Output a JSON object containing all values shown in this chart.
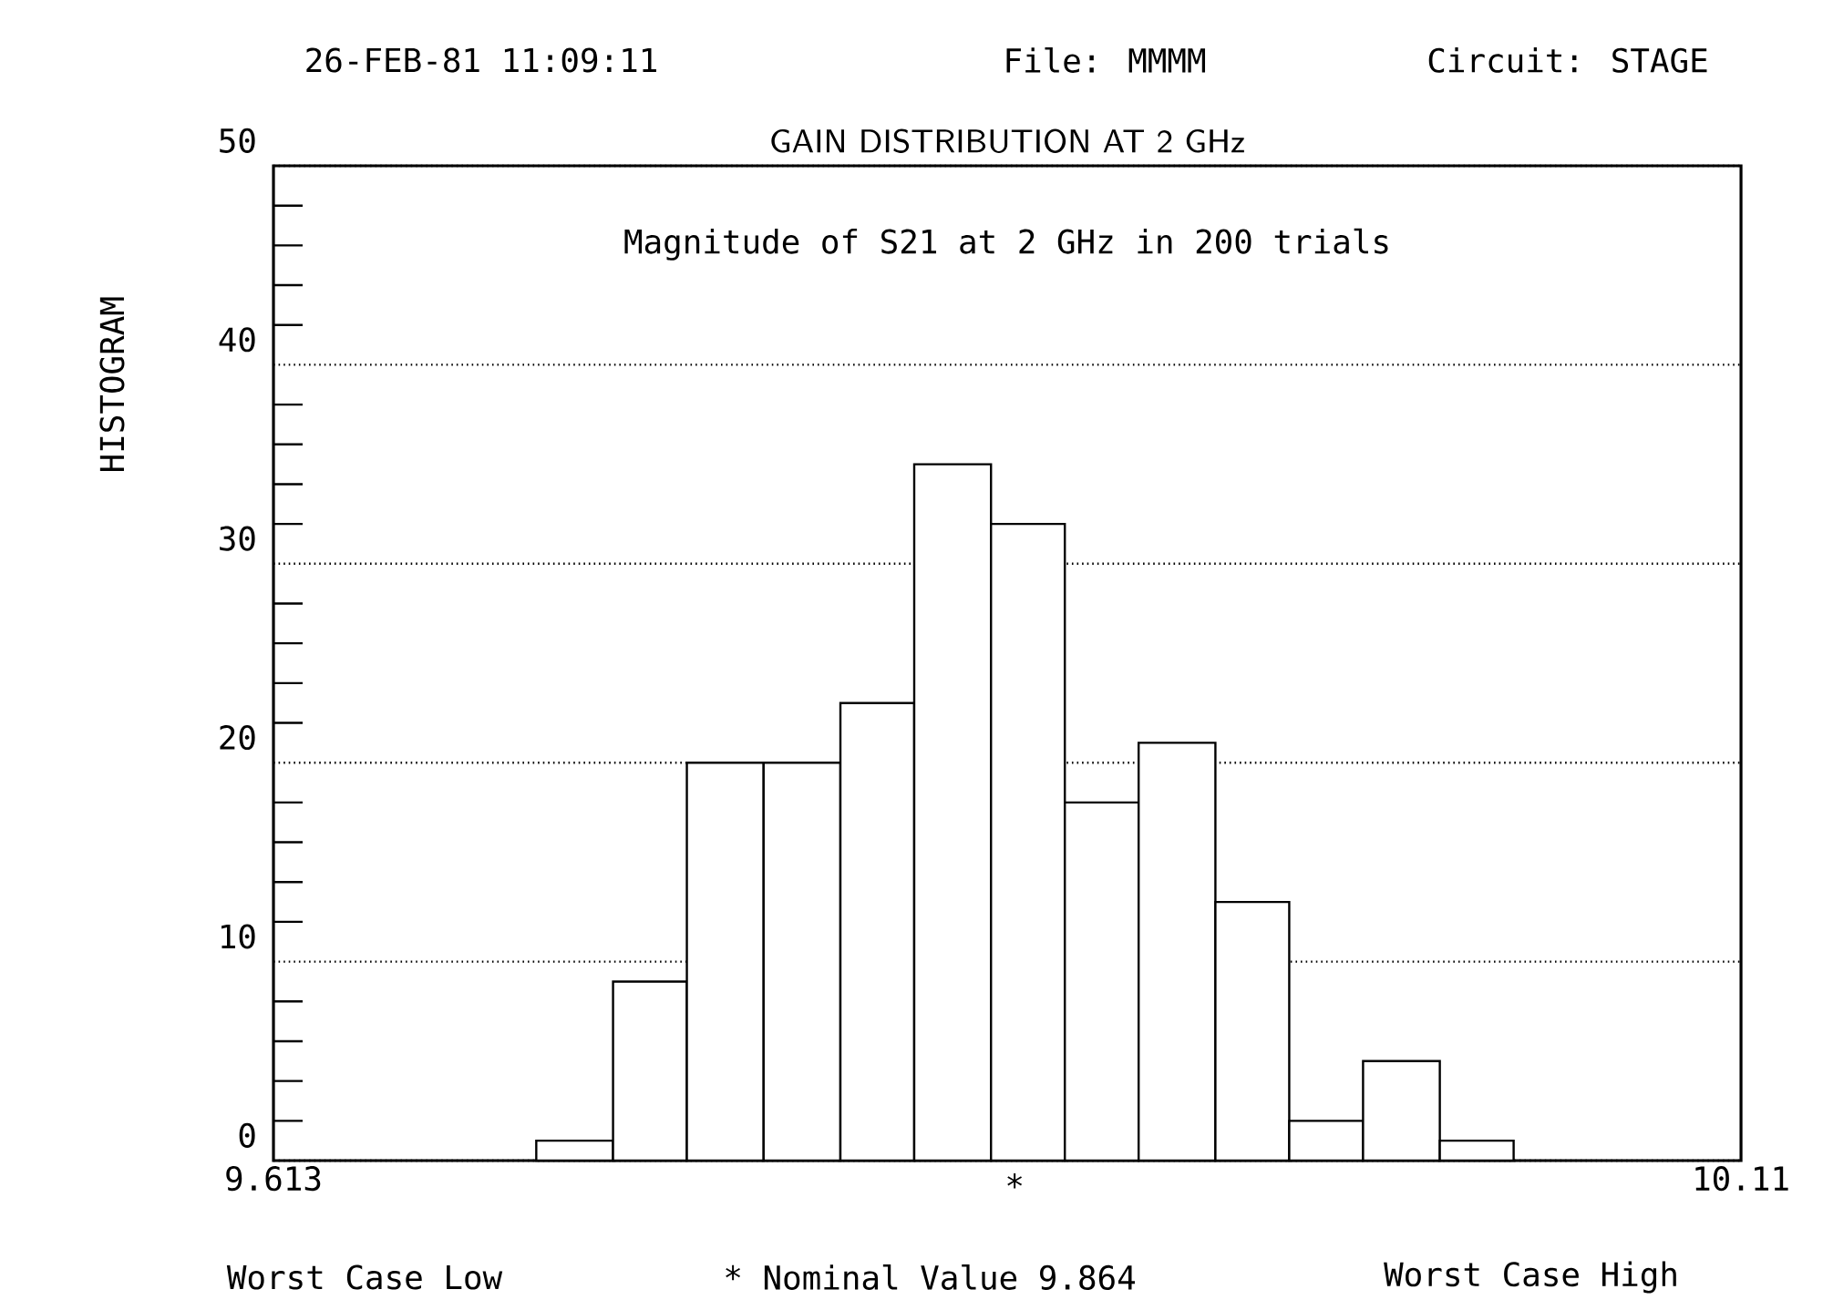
{
  "chart_data": {
    "type": "histogram",
    "title": "GAIN DISTRIBUTION AT 2 GHz",
    "ylabel": "HISTOGRAM",
    "bins": [
      9.702,
      9.728,
      9.753,
      9.779,
      9.805,
      9.83,
      9.856,
      9.881,
      9.906,
      9.932,
      9.957,
      9.982,
      10.008,
      10.033
    ],
    "values": [
      1,
      9,
      20,
      20,
      23,
      35,
      32,
      18,
      21,
      13,
      2,
      5,
      1
    ],
    "color": "#ffffff",
    "xlim": [
      9.613,
      10.11
    ],
    "xticks": [
      9.613,
      10.11
    ],
    "ylim": [
      0,
      50
    ],
    "yticks": [
      0,
      {
        "value": 2,
        "label": null
      },
      {
        "value": 4,
        "label": null
      },
      {
        "value": 6,
        "label": null
      },
      {
        "value": 8,
        "label": null
      },
      10,
      {
        "value": 12,
        "label": null
      },
      {
        "value": 14,
        "label": null
      },
      {
        "value": 16,
        "label": null
      },
      {
        "value": 18,
        "label": null
      },
      20,
      {
        "value": 22,
        "label": null
      },
      {
        "value": 24,
        "label": null
      },
      {
        "value": 26,
        "label": null
      },
      {
        "value": 28,
        "label": null
      },
      30,
      {
        "value": 32,
        "label": null
      },
      {
        "value": 34,
        "label": null
      },
      {
        "value": 36,
        "label": null
      },
      {
        "value": 38,
        "label": null
      },
      40,
      {
        "value": 42,
        "label": null
      },
      {
        "value": 44,
        "label": null
      },
      {
        "value": 46,
        "label": null
      },
      {
        "value": 48,
        "label": null
      },
      50
    ],
    "grid": "y",
    "annotations": [
      "26-FEB-81 11:09:11",
      "File: MMMM",
      "Circuit: STAGE",
      "Magnitude of S21 at 2 GHz in 200 trials",
      {
        "text": "*",
        "x": 9.864,
        "y": 0
      },
      "Worst Case Low",
      "* Nominal Value 9.864",
      "Worst Case High"
    ]
  }
}
